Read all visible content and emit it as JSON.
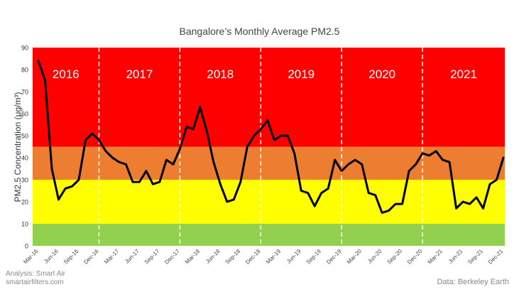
{
  "credits": {
    "analysis": "Analysis: Smart Air",
    "site": "smartairfilters.com",
    "data_source": "Data: Berkeley Earth"
  },
  "chart_data": {
    "type": "line",
    "title": "Bangalore’s Monthly Average PM2.5",
    "xlabel": "",
    "ylabel": "PM2.5 Concentration (μg/m³)",
    "ylim": [
      0,
      90
    ],
    "yticks": [
      0,
      10,
      20,
      30,
      40,
      50,
      60,
      70,
      80,
      90
    ],
    "grid": false,
    "bands": [
      {
        "from": 0,
        "to": 10,
        "color": "#92d050"
      },
      {
        "from": 10,
        "to": 30,
        "color": "#ffff00"
      },
      {
        "from": 30,
        "to": 45,
        "color": "#ed7d31"
      },
      {
        "from": 45,
        "to": 90,
        "color": "#ff0000"
      }
    ],
    "line_color": "#000000",
    "year_labels": [
      "2016",
      "2017",
      "2018",
      "2019",
      "2020",
      "2021"
    ],
    "tick_labels": [
      "Mar-16",
      "Jun-16",
      "Sep-16",
      "Dec-16",
      "Mar-17",
      "Jun-17",
      "Sep-17",
      "Dec-17",
      "Mar-18",
      "Jun-18",
      "Sep-18",
      "Dec-18",
      "Mar-19",
      "Jun-19",
      "Sep-19",
      "Dec-19",
      "Mar-20",
      "Jun-20",
      "Sep-20",
      "Dec-20",
      "Mar-21",
      "Jun-21",
      "Sep-21",
      "Dec-21"
    ],
    "x": [
      "Mar-16",
      "Apr-16",
      "May-16",
      "Jun-16",
      "Jul-16",
      "Aug-16",
      "Sep-16",
      "Oct-16",
      "Nov-16",
      "Dec-16",
      "Jan-17",
      "Feb-17",
      "Mar-17",
      "Apr-17",
      "May-17",
      "Jun-17",
      "Jul-17",
      "Aug-17",
      "Sep-17",
      "Oct-17",
      "Nov-17",
      "Dec-17",
      "Jan-18",
      "Feb-18",
      "Mar-18",
      "Apr-18",
      "May-18",
      "Jun-18",
      "Jul-18",
      "Aug-18",
      "Sep-18",
      "Oct-18",
      "Nov-18",
      "Dec-18",
      "Jan-19",
      "Feb-19",
      "Mar-19",
      "Apr-19",
      "May-19",
      "Jun-19",
      "Jul-19",
      "Aug-19",
      "Sep-19",
      "Oct-19",
      "Nov-19",
      "Dec-19",
      "Jan-20",
      "Feb-20",
      "Mar-20",
      "Apr-20",
      "May-20",
      "Jun-20",
      "Jul-20",
      "Aug-20",
      "Sep-20",
      "Oct-20",
      "Nov-20",
      "Dec-20",
      "Jan-21",
      "Feb-21",
      "Mar-21",
      "Apr-21",
      "May-21",
      "Jun-21",
      "Jul-21",
      "Aug-21",
      "Sep-21",
      "Oct-21",
      "Nov-21",
      "Dec-21"
    ],
    "series": [
      {
        "values": [
          84,
          75,
          35,
          21,
          26,
          27,
          30,
          48,
          51,
          48,
          43,
          40,
          38,
          37,
          29,
          29,
          34,
          28,
          29,
          39,
          37,
          44,
          54,
          53,
          63,
          52,
          38,
          28,
          20,
          21,
          29,
          45,
          50,
          53,
          57,
          48,
          50,
          50,
          42,
          25,
          24,
          18,
          24,
          26,
          39,
          34,
          37,
          39,
          37,
          24,
          23,
          15,
          16,
          19,
          19,
          34,
          37,
          42,
          41,
          43,
          39,
          38,
          17,
          20,
          19,
          22,
          17,
          28,
          30,
          40
        ]
      }
    ]
  }
}
